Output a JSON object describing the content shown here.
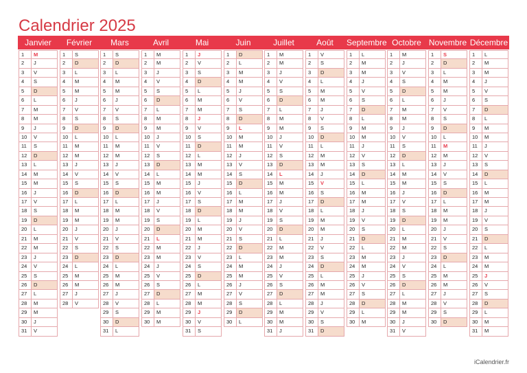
{
  "title": "Calendrier 2025",
  "footer": "iCalendrier.fr",
  "colors": {
    "accent": "#e8394a",
    "weekend_fill": "#f6dccc",
    "grid": "#e5a7ab"
  },
  "months": [
    {
      "name": "Janvier",
      "start": 2,
      "days": 31,
      "holidays": [
        1
      ]
    },
    {
      "name": "Février",
      "start": 5,
      "days": 28,
      "holidays": []
    },
    {
      "name": "Mars",
      "start": 5,
      "days": 31,
      "holidays": []
    },
    {
      "name": "Avril",
      "start": 1,
      "days": 30,
      "holidays": [
        21
      ]
    },
    {
      "name": "Mai",
      "start": 3,
      "days": 31,
      "holidays": [
        1,
        8,
        29
      ]
    },
    {
      "name": "Juin",
      "start": 6,
      "days": 30,
      "holidays": [
        9
      ]
    },
    {
      "name": "Juillet",
      "start": 1,
      "days": 31,
      "holidays": [
        14
      ]
    },
    {
      "name": "Août",
      "start": 4,
      "days": 31,
      "holidays": [
        15
      ]
    },
    {
      "name": "Septembre",
      "start": 0,
      "days": 30,
      "holidays": []
    },
    {
      "name": "Octobre",
      "start": 2,
      "days": 31,
      "holidays": []
    },
    {
      "name": "Novembre",
      "start": 5,
      "days": 30,
      "holidays": [
        1,
        11
      ]
    },
    {
      "name": "Décembre",
      "start": 0,
      "days": 31,
      "holidays": [
        25
      ]
    }
  ],
  "weekday_letters": [
    "L",
    "M",
    "M",
    "J",
    "V",
    "S",
    "D"
  ]
}
